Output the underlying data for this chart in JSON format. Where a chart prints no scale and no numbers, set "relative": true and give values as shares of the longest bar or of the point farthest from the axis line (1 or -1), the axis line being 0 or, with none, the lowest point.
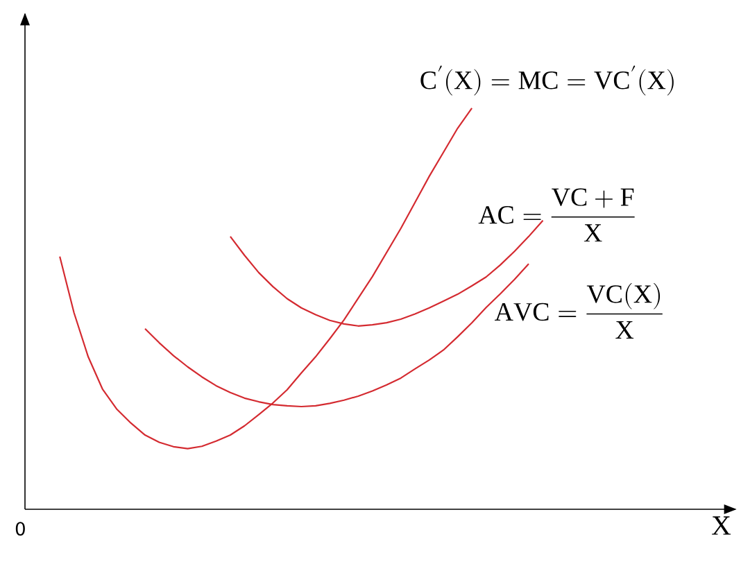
{
  "chart_data": {
    "type": "line",
    "relative": true,
    "annotations": [
      "0",
      "X"
    ],
    "legend": false,
    "categories": [
      null,
      null,
      null,
      null,
      null,
      null,
      null,
      null,
      null,
      null,
      null,
      null,
      null,
      null,
      null,
      null,
      null,
      null,
      null,
      null,
      null,
      null,
      null,
      null,
      null,
      null,
      null,
      null,
      null,
      null,
      null,
      null,
      null,
      null,
      null,
      null
    ],
    "series": [
      {
        "name": "\\mathrm{C'(X) = MC = VC'(X)}",
        "color": "#d42a30",
        "values": [
          null,
          0.63,
          0.49,
          0.38,
          0.3,
          0.25,
          0.215,
          0.185,
          0.167,
          0.156,
          0.151,
          0.157,
          0.17,
          0.185,
          0.208,
          0.236,
          0.265,
          0.298,
          0.34,
          0.38,
          0.425,
          0.472,
          0.526,
          0.58,
          0.64,
          0.7,
          0.765,
          0.83,
          0.89,
          0.95,
          1.0,
          null,
          null,
          null,
          null,
          null
        ]
      },
      {
        "name": "\\mathrm{AC} = \\frac{\\mathrm{VC + F}}{\\mathrm{X}}",
        "color": "#d42a30",
        "values": [
          null,
          null,
          null,
          null,
          null,
          null,
          null,
          null,
          null,
          null,
          null,
          null,
          null,
          0.68,
          0.633,
          0.59,
          0.555,
          0.525,
          0.502,
          0.485,
          0.471,
          0.462,
          0.457,
          0.46,
          0.465,
          0.474,
          0.487,
          0.502,
          0.519,
          0.536,
          0.557,
          0.579,
          0.609,
          0.643,
          0.68,
          0.72
        ]
      },
      {
        "name": "\\mathrm{AVC} = \\frac{\\mathrm{VC(X)}}{\\mathrm{X}}",
        "color": "#d42a30",
        "values": [
          null,
          null,
          null,
          null,
          null,
          null,
          null,
          0.45,
          0.415,
          0.383,
          0.355,
          0.33,
          0.308,
          0.291,
          0.277,
          0.268,
          0.261,
          0.258,
          0.256,
          0.258,
          0.264,
          0.272,
          0.282,
          0.295,
          0.31,
          0.327,
          0.35,
          0.372,
          0.397,
          0.43,
          0.465,
          0.503,
          0.537,
          0.573,
          0.612,
          null
        ]
      }
    ]
  }
}
